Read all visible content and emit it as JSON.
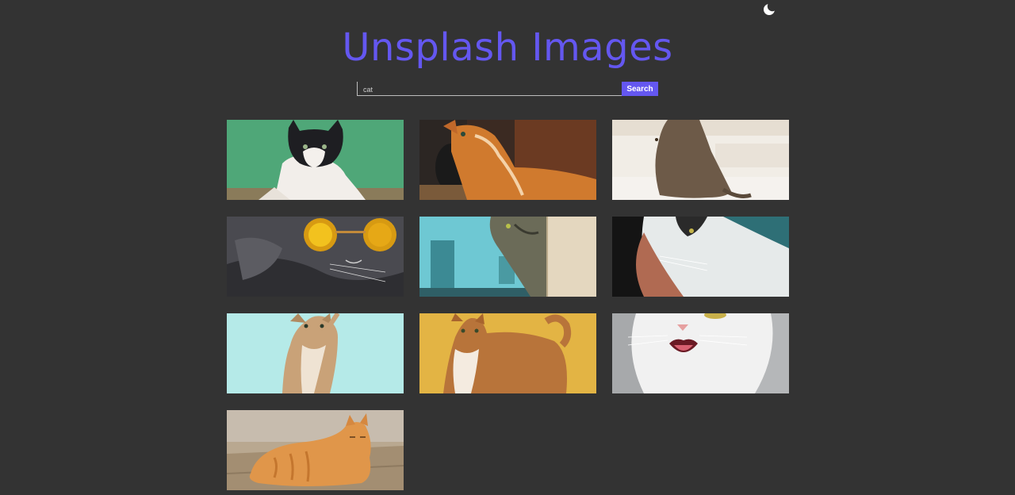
{
  "header": {
    "title": "Unsplash Images",
    "theme_toggle_icon": "moon-icon"
  },
  "search": {
    "value": "cat",
    "button_label": "Search"
  },
  "colors": {
    "background": "#333333",
    "accent": "#6457f0"
  },
  "results": [
    {
      "subject": "black-and-white cat on green background"
    },
    {
      "subject": "orange tabby cat looking up"
    },
    {
      "subject": "brown tabby cat sitting on stairs"
    },
    {
      "subject": "gray cat wearing yellow sunglasses"
    },
    {
      "subject": "cat peeking behind blue wall"
    },
    {
      "subject": "fluffy calico cat close-up"
    },
    {
      "subject": "kitten reaching up on teal background"
    },
    {
      "subject": "orange and white cat on yellow background"
    },
    {
      "subject": "white cat with open mouth"
    },
    {
      "subject": "orange tabby cat lying on wooden floor"
    }
  ]
}
